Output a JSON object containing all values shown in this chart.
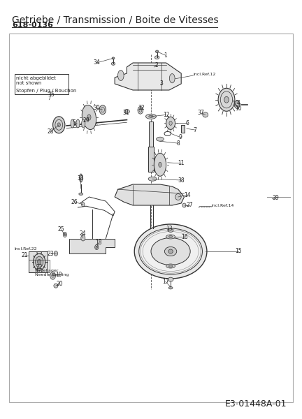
{
  "title": "Getriebe / Transmission / Boite de Vitesses",
  "part_number": "618-0136",
  "diagram_id": "E3-01448A-01",
  "bg_color": "#ffffff",
  "line_color": "#333333",
  "text_color": "#222222",
  "fig_width": 4.32,
  "fig_height": 6.0,
  "dpi": 100
}
